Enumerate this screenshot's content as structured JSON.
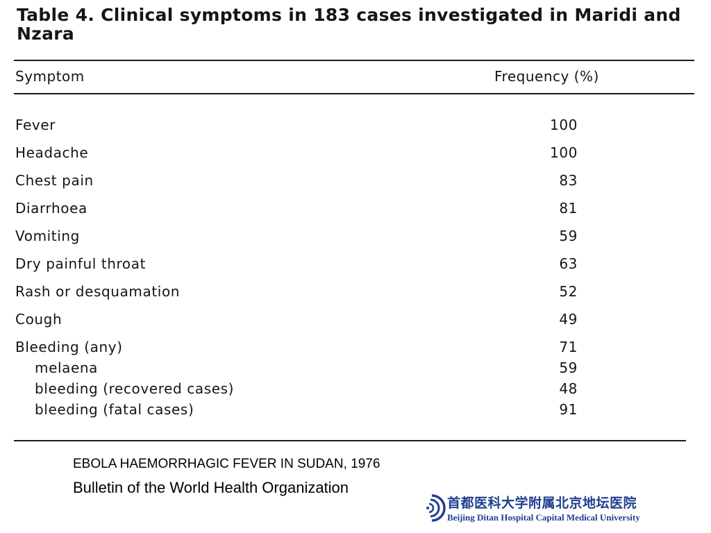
{
  "table": {
    "title": "Table 4. Clinical symptoms in 183 cases investigated in Maridi and Nzara",
    "header_symptom": "Symptom",
    "header_frequency": "Frequency (%)",
    "rows": [
      {
        "symptom": "Fever",
        "frequency": "100",
        "indent": false
      },
      {
        "symptom": "Headache",
        "frequency": "100",
        "indent": false
      },
      {
        "symptom": "Chest pain",
        "frequency": "83",
        "indent": false
      },
      {
        "symptom": "Diarrhoea",
        "frequency": "81",
        "indent": false
      },
      {
        "symptom": "Vomiting",
        "frequency": "59",
        "indent": false
      },
      {
        "symptom": "Dry painful throat",
        "frequency": "63",
        "indent": false
      },
      {
        "symptom": "Rash or desquamation",
        "frequency": "52",
        "indent": false
      },
      {
        "symptom": "Cough",
        "frequency": "49",
        "indent": false
      },
      {
        "symptom": "Bleeding (any)",
        "frequency": "71",
        "indent": false
      },
      {
        "symptom": "melaena",
        "frequency": "59",
        "indent": true
      },
      {
        "symptom": "bleeding (recovered cases)",
        "frequency": "48",
        "indent": true
      },
      {
        "symptom": "bleeding (fatal cases)",
        "frequency": "91",
        "indent": true
      }
    ]
  },
  "source": {
    "title": "EBOLA HAEMORRHAGIC FEVER IN SUDAN, 1976",
    "journal": "Bulletin of the World Health Organization"
  },
  "logo": {
    "name_cn": "首都医科大学附属北京地坛医院",
    "name_en": "Beijing Ditan Hospital Capital Medical University",
    "color": "#1f3f8f"
  }
}
